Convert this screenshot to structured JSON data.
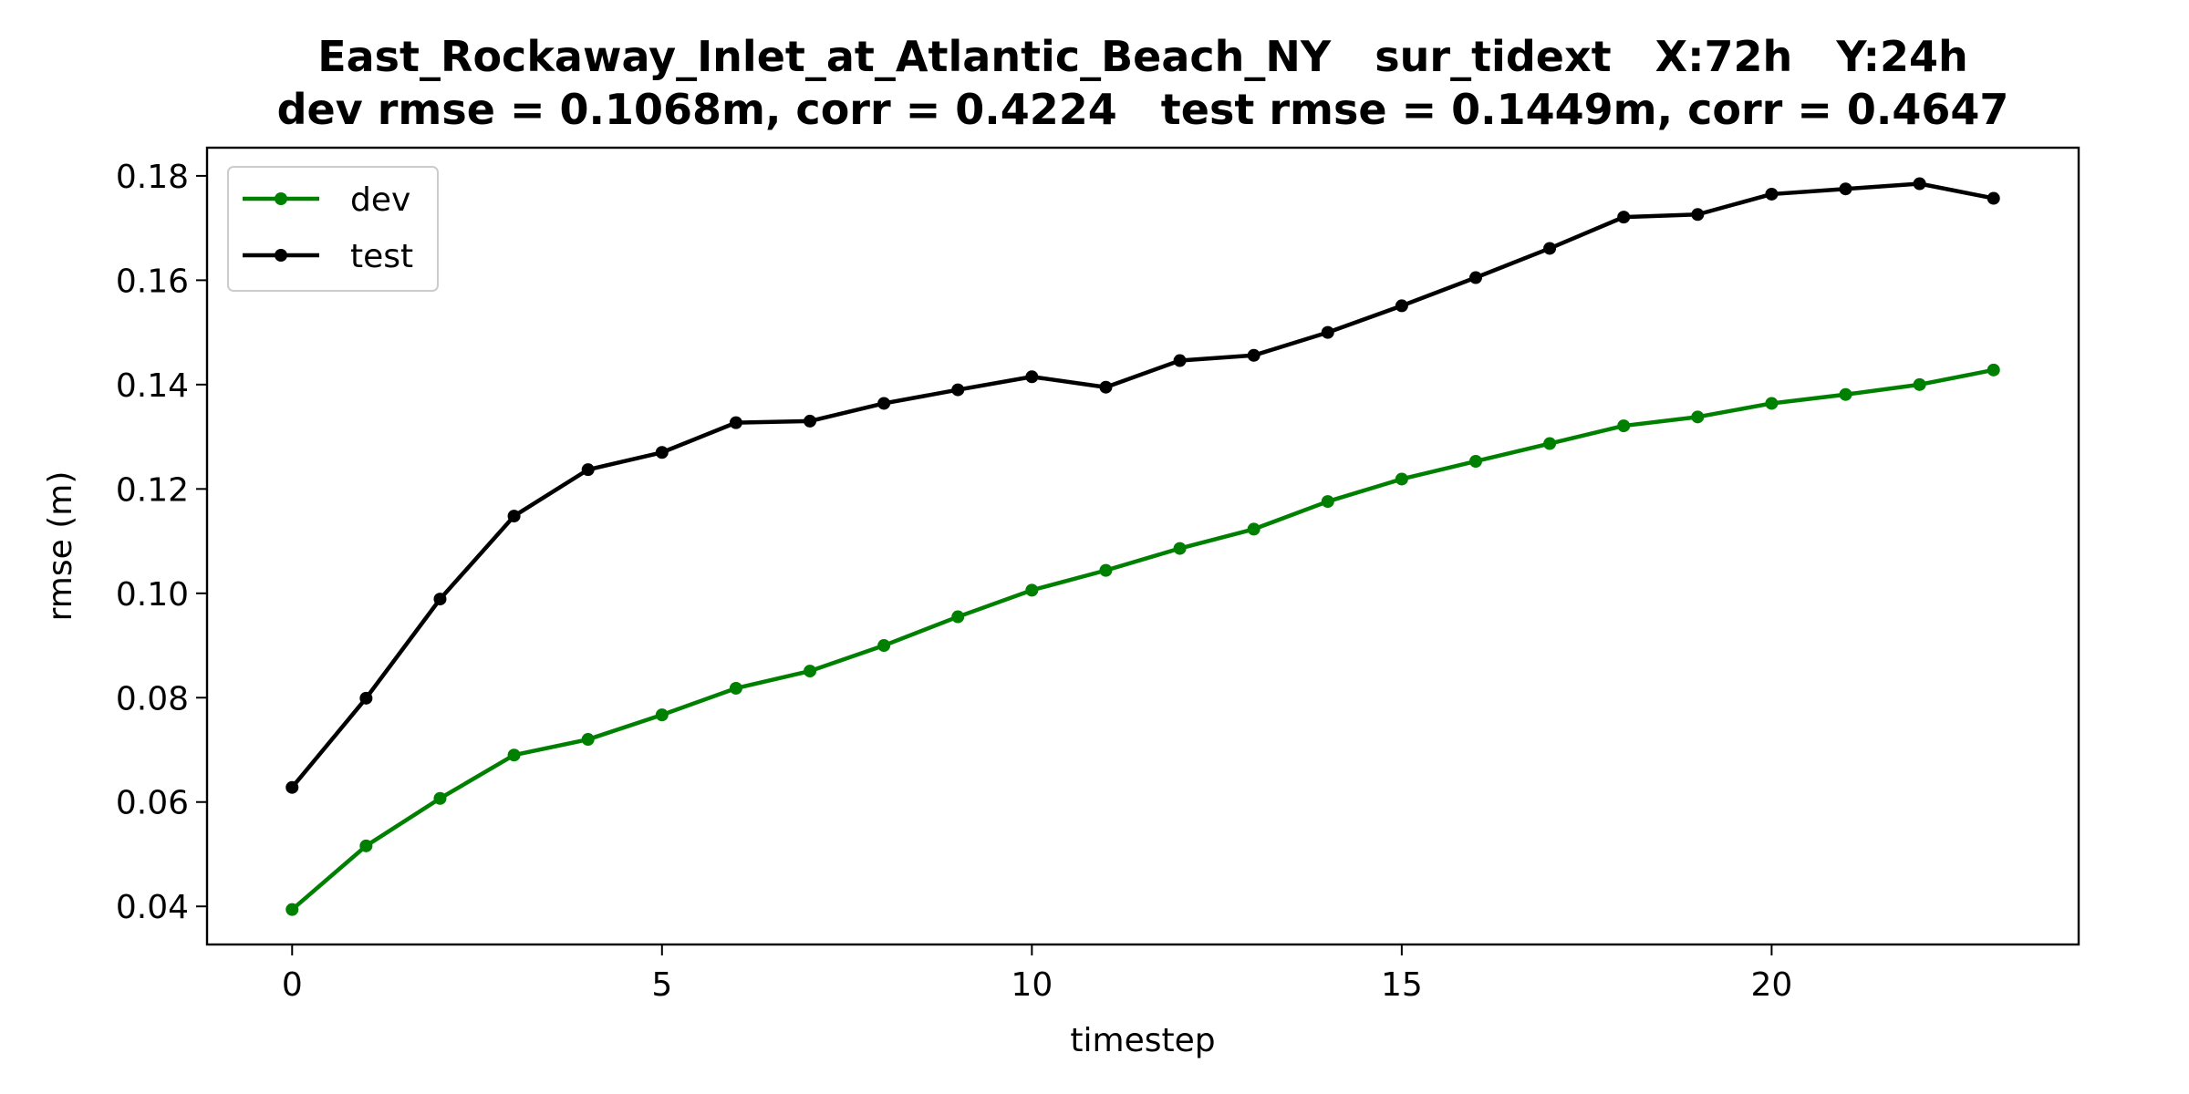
{
  "chart_data": {
    "type": "line",
    "title": "East_Rockaway_Inlet_at_Atlantic_Beach_NY   sur_tidext   X:72h   Y:24h",
    "subtitle": "dev rmse = 0.1068m, corr = 0.4224   test rmse = 0.1449m, corr = 0.4647",
    "xlabel": "timestep",
    "ylabel": "rmse (m)",
    "xlim": [
      -1.15,
      24.15
    ],
    "ylim": [
      0.0327,
      0.1854
    ],
    "xticks": [
      0,
      5,
      10,
      15,
      20
    ],
    "yticks": [
      0.04,
      0.06,
      0.08,
      0.1,
      0.12,
      0.14,
      0.16,
      0.18
    ],
    "ytick_labels": [
      "0.04",
      "0.06",
      "0.08",
      "0.10",
      "0.12",
      "0.14",
      "0.16",
      "0.18"
    ],
    "xtick_labels": [
      "0",
      "5",
      "10",
      "15",
      "20"
    ],
    "grid": false,
    "legend_position": "top-left",
    "x": [
      0,
      1,
      2,
      3,
      4,
      5,
      6,
      7,
      8,
      9,
      10,
      11,
      12,
      13,
      14,
      15,
      16,
      17,
      18,
      19,
      20,
      21,
      22,
      23
    ],
    "series": [
      {
        "name": "dev",
        "color": "#008000",
        "values": [
          0.0394,
          0.0516,
          0.0607,
          0.069,
          0.072,
          0.0767,
          0.0818,
          0.0851,
          0.09,
          0.0955,
          0.1006,
          0.1044,
          0.1086,
          0.1123,
          0.1176,
          0.1219,
          0.1253,
          0.1287,
          0.1321,
          0.1338,
          0.1364,
          0.1381,
          0.14,
          0.1428
        ]
      },
      {
        "name": "test",
        "color": "#000000",
        "values": [
          0.0628,
          0.0799,
          0.0989,
          0.1148,
          0.1237,
          0.127,
          0.1327,
          0.133,
          0.1364,
          0.139,
          0.1415,
          0.1395,
          0.1446,
          0.1456,
          0.15,
          0.1551,
          0.1605,
          0.1661,
          0.1721,
          0.1726,
          0.1765,
          0.1775,
          0.1785,
          0.1757
        ]
      }
    ]
  }
}
